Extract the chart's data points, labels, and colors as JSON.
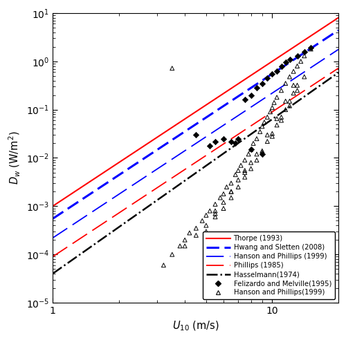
{
  "xlabel": "$U_{10}$ (m/s)",
  "ylabel": "$D_w$ (W/m$^2$)",
  "xlim": [
    1,
    20
  ],
  "ylim": [
    1e-05,
    10
  ],
  "thorpe_coeff": 0.001,
  "thorpe_exp": 3.0,
  "hwang_coeff": 0.00055,
  "hwang_exp": 3.0,
  "hanson_model_coeff": 0.00022,
  "hanson_model_exp": 3.0,
  "phillips_coeff": 9e-05,
  "phillips_exp": 3.0,
  "hasselmann_coeff": 4e-05,
  "hasselmann_exp": 3.2,
  "felizardo_x": [
    4.5,
    5.2,
    5.5,
    6.0,
    6.5,
    6.8,
    7.0,
    7.5,
    8.0,
    8.0,
    8.5,
    9.0,
    9.0,
    9.5,
    10.0,
    10.5,
    11.0,
    11.5,
    12.0,
    13.0,
    14.0,
    15.0
  ],
  "felizardo_y": [
    0.03,
    0.018,
    0.022,
    0.025,
    0.022,
    0.02,
    0.025,
    0.16,
    0.2,
    0.015,
    0.28,
    0.35,
    0.012,
    0.45,
    0.55,
    0.62,
    0.8,
    0.95,
    1.1,
    1.3,
    1.6,
    1.9
  ],
  "hanson_obs_x": [
    3.2,
    3.5,
    3.8,
    4.0,
    4.2,
    4.5,
    4.8,
    5.0,
    5.2,
    5.5,
    5.8,
    6.0,
    6.2,
    6.5,
    6.8,
    7.0,
    7.2,
    7.5,
    7.8,
    8.0,
    8.2,
    8.5,
    8.8,
    9.0,
    9.2,
    9.5,
    9.8,
    10.0,
    10.2,
    10.5,
    11.0,
    11.5,
    12.0,
    12.5,
    13.0,
    13.5,
    14.0,
    15.0,
    4.5,
    5.0,
    5.5,
    6.0,
    6.5,
    7.0,
    7.5,
    8.0,
    8.5,
    9.0,
    9.5,
    10.0,
    10.5,
    11.0,
    11.5,
    12.0,
    12.5,
    13.0,
    14.0,
    3.5,
    4.0,
    5.0,
    5.5,
    6.0,
    6.5,
    7.0,
    7.5,
    8.0,
    9.0,
    10.0,
    11.0,
    12.0,
    13.0,
    5.5,
    6.5,
    7.5,
    8.5,
    9.5,
    10.5,
    11.5,
    12.5
  ],
  "hanson_obs_y": [
    6e-05,
    0.0001,
    0.00015,
    0.0002,
    0.00028,
    0.00035,
    0.0005,
    0.00065,
    0.0008,
    0.0011,
    0.0015,
    0.0018,
    0.0025,
    0.003,
    0.0045,
    0.0055,
    0.007,
    0.009,
    0.012,
    0.015,
    0.02,
    0.025,
    0.035,
    0.045,
    0.055,
    0.07,
    0.09,
    0.11,
    0.14,
    0.18,
    0.25,
    0.35,
    0.48,
    0.62,
    0.8,
    1.0,
    1.3,
    1.8,
    0.00025,
    0.0004,
    0.0006,
    0.0009,
    0.0015,
    0.0025,
    0.004,
    0.006,
    0.009,
    0.014,
    0.022,
    0.032,
    0.048,
    0.07,
    0.1,
    0.15,
    0.22,
    0.32,
    0.48,
    0.72,
    0.00015,
    0.0003,
    0.0007,
    0.0012,
    0.002,
    0.0035,
    0.0055,
    0.008,
    0.013,
    0.028,
    0.06,
    0.12,
    0.25,
    0.0008,
    0.002,
    0.005,
    0.012,
    0.03,
    0.065,
    0.15,
    0.32
  ],
  "colors": {
    "thorpe": "#ff0000",
    "hwang": "#0000ff",
    "hanson_model": "#0000ff",
    "phillips": "#ff0000",
    "hasselmann": "#000000"
  }
}
